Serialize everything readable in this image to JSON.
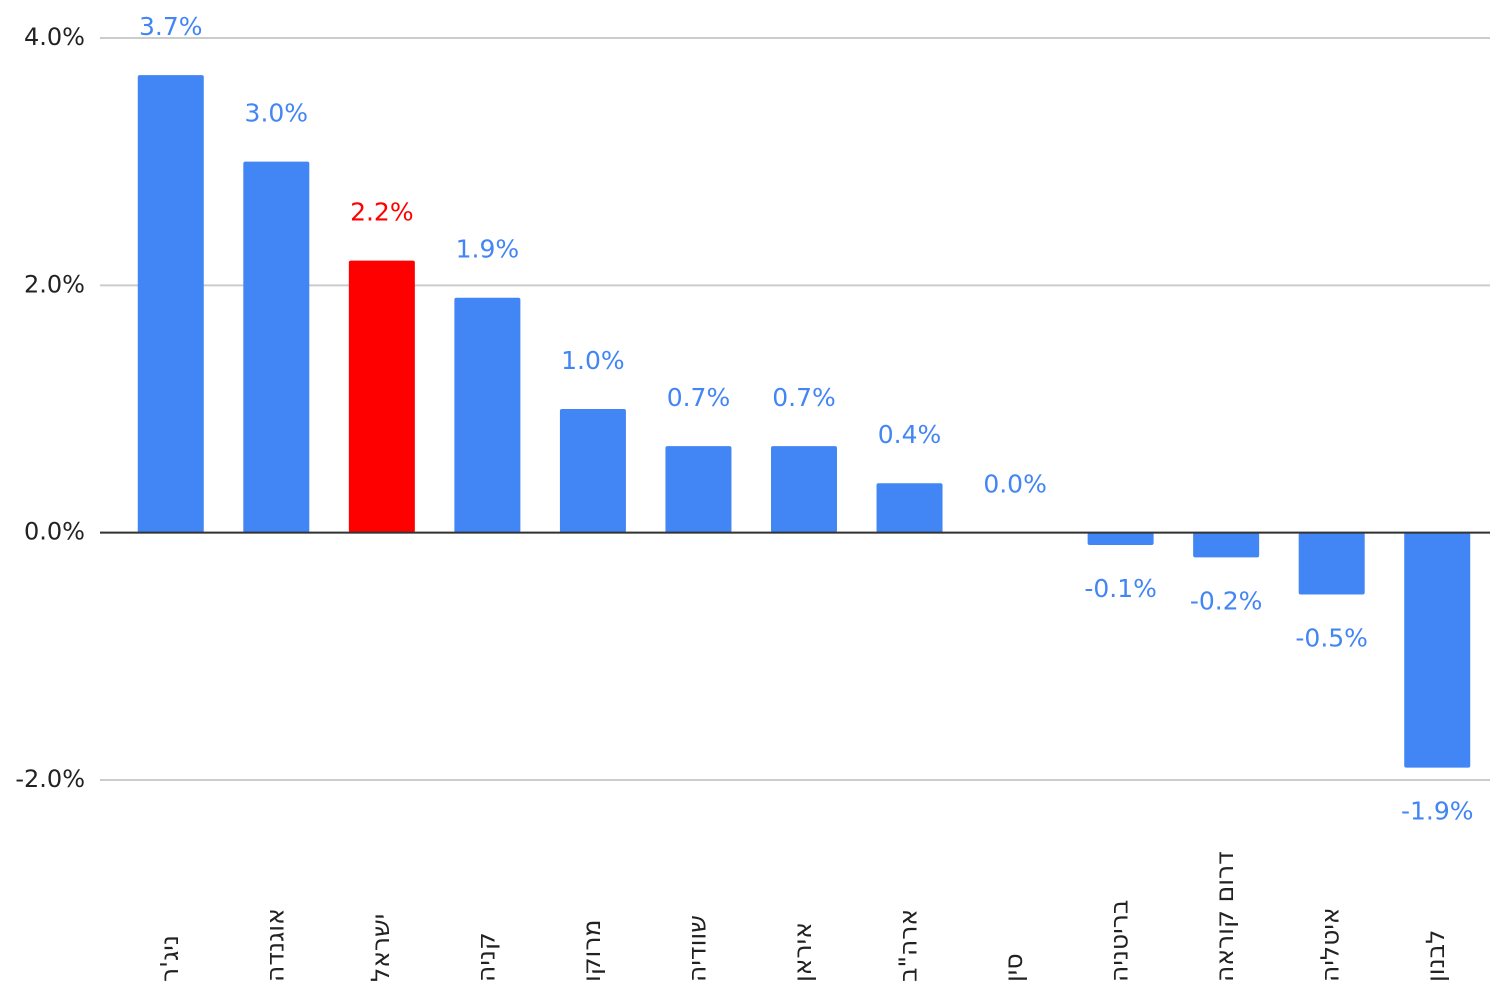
{
  "chart_data": {
    "type": "bar",
    "categories": [
      "ניג'ר",
      "אוגנדה",
      "ישראל",
      "קניה",
      "מרוקו",
      "שוודיה",
      "איראן",
      "ארה\"ב",
      "סין",
      "בריטניה",
      "דרום קוראה",
      "איטליה",
      "לבנון"
    ],
    "values": [
      3.7,
      3.0,
      2.2,
      1.9,
      1.0,
      0.7,
      0.7,
      0.4,
      0.0,
      -0.1,
      -0.2,
      -0.5,
      -1.9
    ],
    "value_labels": [
      "3.7%",
      "3.0%",
      "2.2%",
      "1.9%",
      "1.0%",
      "0.7%",
      "0.7%",
      "0.4%",
      "0.0%",
      "-0.1%",
      "-0.2%",
      "-0.5%",
      "-1.9%"
    ],
    "colors": [
      "#4285f4",
      "#4285f4",
      "#ff0000",
      "#4285f4",
      "#4285f4",
      "#4285f4",
      "#4285f4",
      "#4285f4",
      "#4285f4",
      "#4285f4",
      "#4285f4",
      "#4285f4",
      "#4285f4"
    ],
    "ylim": [
      -2,
      4
    ],
    "yticks": [
      {
        "value": -2,
        "label": "-2.0%"
      },
      {
        "value": 0,
        "label": "0.0%"
      },
      {
        "value": 2,
        "label": "2.0%"
      },
      {
        "value": 4,
        "label": "4.0%"
      }
    ],
    "grid": true
  }
}
